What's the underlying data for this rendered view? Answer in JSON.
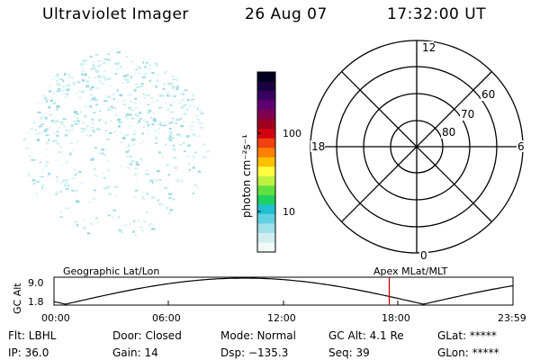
{
  "header": {
    "title": "Ultraviolet Imager",
    "date": "26 Aug 07",
    "time": "17:32:00 UT"
  },
  "colorbar": {
    "label": "photon cm⁻²s⁻¹",
    "ticks": [
      "100",
      "10"
    ],
    "colors": [
      "#000020",
      "#1a0040",
      "#3a0060",
      "#600070",
      "#800050",
      "#a00020",
      "#d00010",
      "#f04010",
      "#ff8000",
      "#ffc000",
      "#ffff40",
      "#c0f040",
      "#60e040",
      "#20d060",
      "#20c0d0",
      "#60d0e0",
      "#a0e0e8",
      "#d0eef0",
      "#f0f8f8"
    ]
  },
  "polar": {
    "labels": {
      "top": "12",
      "bottom": "0",
      "left": "18",
      "right": "6"
    },
    "lat_labels": [
      "60",
      "70",
      "80"
    ]
  },
  "timeline": {
    "left_title": "Geographic Lat/Lon",
    "right_title": "Apex MLat/MLT",
    "ylabel": "GC Alt",
    "y_ticks": [
      "9.0",
      "1.8"
    ],
    "x_ticks": [
      "00:00",
      "06:00",
      "12:00",
      "18:00",
      "23:59"
    ],
    "marker_time_hours": 17.53,
    "marker_color": "#d00000"
  },
  "footer": {
    "row1": [
      "Flt: LBHL",
      "Door: Closed",
      "Mode: Normal",
      "GC Alt: 4.1 Re",
      "GLat: *****"
    ],
    "row2": [
      "IP: 36.0",
      "Gain: 14",
      "Dsp: −135.3",
      "Seq: 39",
      "GLon: *****"
    ]
  }
}
